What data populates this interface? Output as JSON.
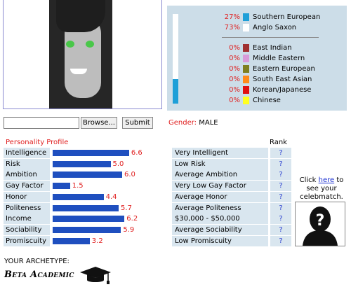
{
  "ethnicity": {
    "fill_percent": 27,
    "fill_color": "#1e9fd8",
    "groups": [
      {
        "pct": "27%",
        "label": "Southern European",
        "color": "#1e9fd8"
      },
      {
        "pct": "73%",
        "label": "Anglo Saxon",
        "color": "#ffffff"
      },
      {
        "pct": "0%",
        "label": "East Indian",
        "color": "#a03030"
      },
      {
        "pct": "0%",
        "label": "Middle Eastern",
        "color": "#d89ad8"
      },
      {
        "pct": "0%",
        "label": "Eastern European",
        "color": "#7f7f1f"
      },
      {
        "pct": "0%",
        "label": "South East Asian",
        "color": "#ff8a1a"
      },
      {
        "pct": "0%",
        "label": "Korean/Japanese",
        "color": "#e01010"
      },
      {
        "pct": "0%",
        "label": "Chinese",
        "color": "#ffff20"
      }
    ]
  },
  "upload": {
    "browse_label": "Browse...",
    "submit_label": "Submit"
  },
  "gender": {
    "label": "Gender:",
    "value": "MALE"
  },
  "personality": {
    "title": "Personality Profile",
    "rank_header": "Rank",
    "max_score": 10,
    "traits": [
      {
        "name": "Intelligence",
        "score": 6.6,
        "score_text": "6.6",
        "desc": "Very Intelligent",
        "rank": "?"
      },
      {
        "name": "Risk",
        "score": 5.0,
        "score_text": "5.0",
        "desc": "Low Risk",
        "rank": "?"
      },
      {
        "name": "Ambition",
        "score": 6.0,
        "score_text": "6.0",
        "desc": "Average Ambition",
        "rank": "?"
      },
      {
        "name": "Gay Factor",
        "score": 1.5,
        "score_text": "1.5",
        "desc": "Very Low Gay Factor",
        "rank": "?"
      },
      {
        "name": "Honor",
        "score": 4.4,
        "score_text": "4.4",
        "desc": "Average Honor",
        "rank": "?"
      },
      {
        "name": "Politeness",
        "score": 5.7,
        "score_text": "5.7",
        "desc": "Average Politeness",
        "rank": "?"
      },
      {
        "name": "Income",
        "score": 6.2,
        "score_text": "6.2",
        "desc": "$30,000 - $50,000",
        "rank": "?"
      },
      {
        "name": "Sociability",
        "score": 5.9,
        "score_text": "5.9",
        "desc": "Average Sociability",
        "rank": "?"
      },
      {
        "name": "Promiscuity",
        "score": 3.2,
        "score_text": "3.2",
        "desc": "Low Promiscuity",
        "rank": "?"
      }
    ]
  },
  "celebmatch": {
    "prefix": "Click ",
    "link": "here",
    "suffix": " to see your celebmatch."
  },
  "archetype": {
    "label": "YOUR ARCHETYPE:",
    "name": "Beta Academic",
    "icon": "graduation-cap-icon"
  }
}
